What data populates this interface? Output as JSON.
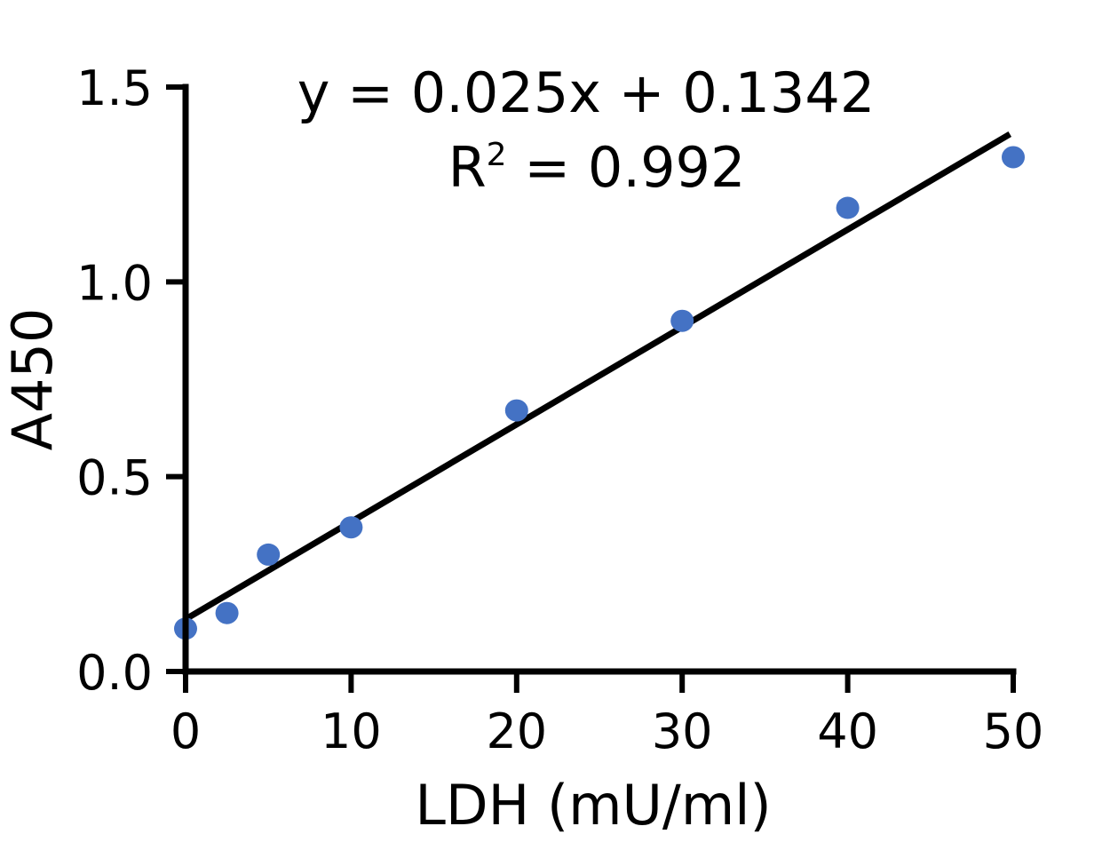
{
  "chart_data": {
    "type": "scatter",
    "xlabel": "LDH (mU/ml)",
    "ylabel": "A450",
    "xlim": [
      0,
      50
    ],
    "ylim": [
      0,
      1.5
    ],
    "xticks": [
      "0",
      "10",
      "20",
      "30",
      "40",
      "50"
    ],
    "yticks": [
      "0.0",
      "0.5",
      "1.0",
      "1.5"
    ],
    "grid": false,
    "points": [
      {
        "x": 0,
        "y": 0.11
      },
      {
        "x": 2.5,
        "y": 0.15
      },
      {
        "x": 5,
        "y": 0.3
      },
      {
        "x": 10,
        "y": 0.37
      },
      {
        "x": 20,
        "y": 0.67
      },
      {
        "x": 30,
        "y": 0.9
      },
      {
        "x": 40,
        "y": 1.19
      },
      {
        "x": 50,
        "y": 1.32
      }
    ],
    "fit": {
      "slope": 0.025,
      "intercept": 0.1342
    },
    "equation": "y = 0.025x + 0.1342",
    "r2_prefix": "R",
    "r2_sup": "2",
    "r2_value": " = 0.992",
    "point_color": "#4472c4",
    "line_color": "#000000"
  }
}
